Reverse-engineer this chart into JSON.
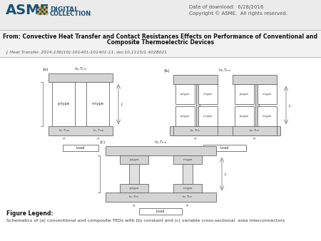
{
  "background_color": "#ffffff",
  "header_bg": "#ebebeb",
  "date_text": "Date of download:  6/28/2016",
  "copyright_text": "Copyright © ASME.  All rights reserved.",
  "from_line1": "From: Convective Heat Transfer and Contact Resistances Effects on Performance of Conventional and",
  "from_line2": "Composite Thermoelectric Devices",
  "journal_ref": "J. Heat Transfer. 2014;136(10):101401-101401-11. doi:10.1115/1.4028021",
  "figure_legend_title": "Figure Legend:",
  "figure_legend_text": "Schematics of (a) conventional and composite TEDs with (b) constant and (c) variable cross-sectional  area interconnectors",
  "light_gray": "#d4d4d4",
  "mid_gray": "#c0c0c0",
  "outline_color": "#666666",
  "text_color": "#333333",
  "title_color": "#111111",
  "asme_blue": "#1a5276"
}
